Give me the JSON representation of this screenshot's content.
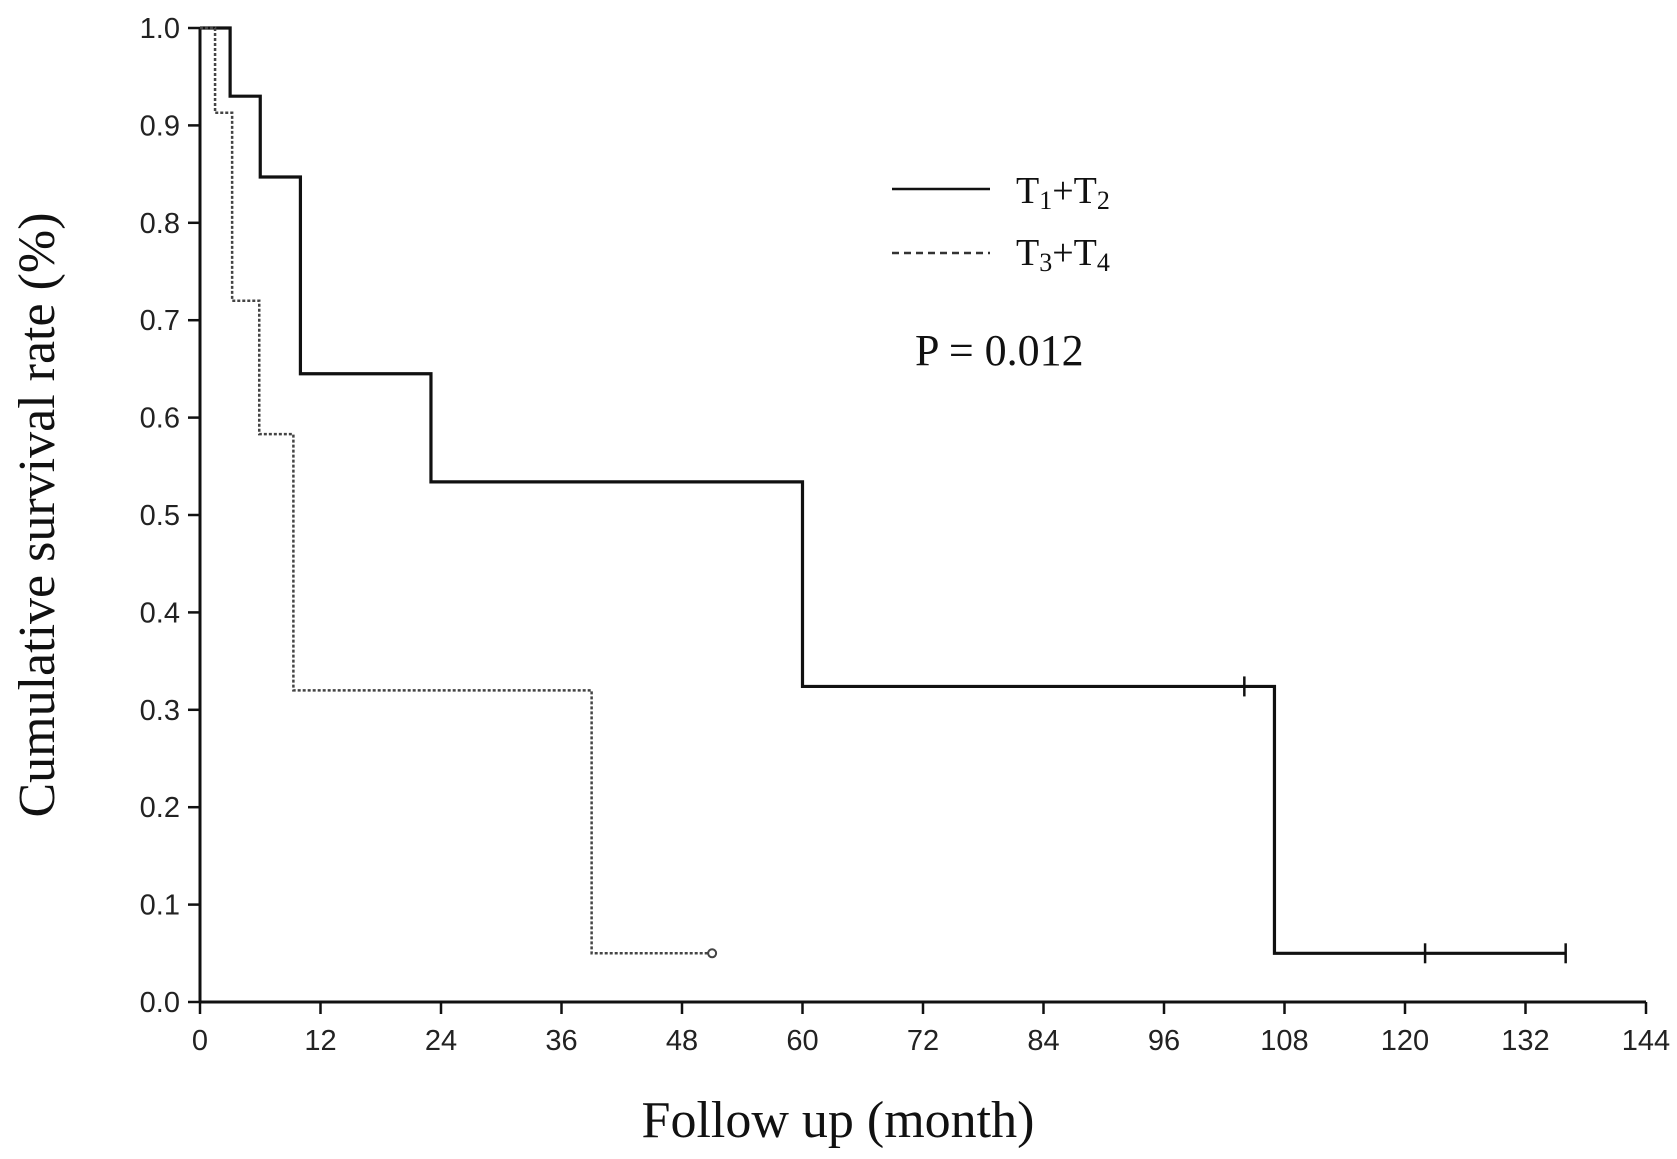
{
  "chart_data": {
    "type": "line",
    "subtype": "kaplan-meier step survival curve",
    "xlabel": "Follow up (month)",
    "ylabel": "Cumulative survival rate (%)",
    "xlim": [
      0,
      144
    ],
    "ylim": [
      0,
      1.0
    ],
    "xticks": [
      0,
      12,
      24,
      36,
      48,
      60,
      72,
      84,
      96,
      108,
      120,
      132,
      144
    ],
    "yticks": [
      "0.0",
      "0.1",
      "0.2",
      "0.3",
      "0.4",
      "0.5",
      "0.6",
      "0.7",
      "0.8",
      "0.9",
      "1.0"
    ],
    "grid": false,
    "legend_position": "upper-right of plot area",
    "series": [
      {
        "name": "T1+T2",
        "legend": {
          "main1": "T",
          "sub1": "1",
          "mid": "+T",
          "sub2": "2"
        },
        "line_style": "solid",
        "color": "#111111",
        "steps": [
          [
            0,
            1.0
          ],
          [
            3,
            0.93
          ],
          [
            6,
            0.847
          ],
          [
            10,
            0.645
          ],
          [
            23,
            0.534
          ],
          [
            60,
            0.324
          ],
          [
            107,
            0.05
          ],
          [
            136,
            0.05
          ]
        ],
        "censored": [
          [
            104,
            0.324
          ],
          [
            122,
            0.05
          ],
          [
            136,
            0.05
          ]
        ]
      },
      {
        "name": "T3+T4",
        "legend": {
          "main1": "T",
          "sub1": "3",
          "mid": "+T",
          "sub2": "4"
        },
        "line_style": "dotted",
        "color": "#444444",
        "steps": [
          [
            0,
            1.0
          ],
          [
            1.5,
            0.913
          ],
          [
            3.2,
            0.72
          ],
          [
            5.9,
            0.583
          ],
          [
            9.3,
            0.32
          ],
          [
            39,
            0.05
          ],
          [
            51,
            0.05
          ]
        ],
        "censored_open_circle": [
          [
            51,
            0.05
          ]
        ]
      }
    ],
    "annotations": [
      {
        "text": "P = 0.012"
      }
    ]
  }
}
